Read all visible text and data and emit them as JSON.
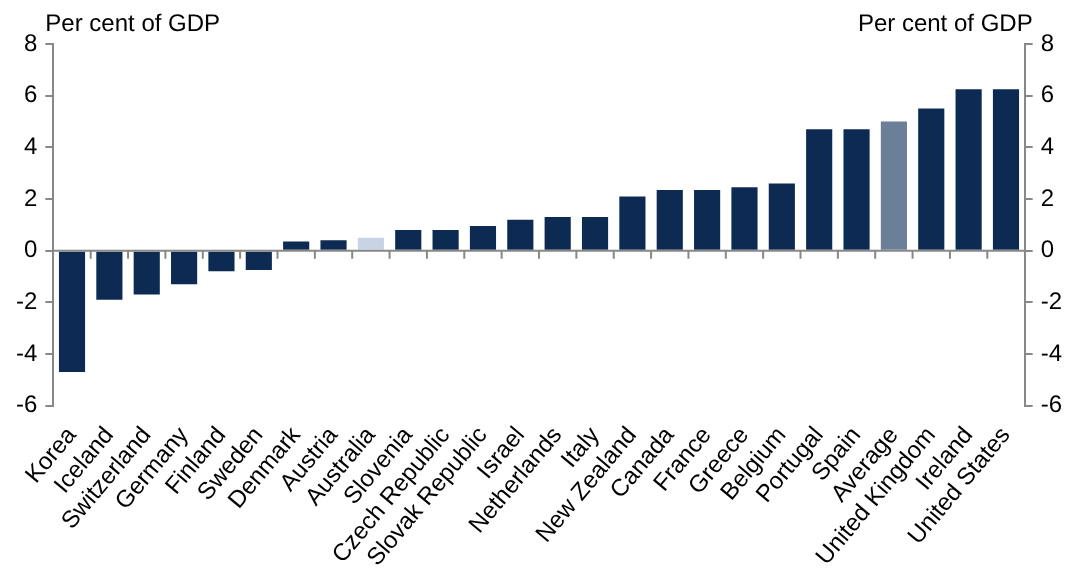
{
  "chart_data": {
    "type": "bar",
    "ylabel": "Per cent of GDP",
    "y2label": "Per cent of GDP",
    "categories": [
      "Korea",
      "Iceland",
      "Switzerland",
      "Germany",
      "Finland",
      "Sweden",
      "Denmark",
      "Austria",
      "Australia",
      "Slovenia",
      "Czech Republic",
      "Slovak Republic",
      "Israel",
      "Netherlands",
      "Italy",
      "New Zealand",
      "Canada",
      "France",
      "Greece",
      "Belgium",
      "Portugal",
      "Spain",
      "Average",
      "United Kingdom",
      "Ireland",
      "United States"
    ],
    "values": [
      -4.7,
      -1.9,
      -1.7,
      -1.3,
      -0.8,
      -0.75,
      0.35,
      0.4,
      0.5,
      0.8,
      0.8,
      0.95,
      1.2,
      1.3,
      1.3,
      2.1,
      2.35,
      2.35,
      2.45,
      2.6,
      4.7,
      4.7,
      5.0,
      5.5,
      6.25,
      6.25
    ],
    "colors": [
      "#0d2a52",
      "#0d2a52",
      "#0d2a52",
      "#0d2a52",
      "#0d2a52",
      "#0d2a52",
      "#0d2a52",
      "#0d2a52",
      "#c8d4e4",
      "#0d2a52",
      "#0d2a52",
      "#0d2a52",
      "#0d2a52",
      "#0d2a52",
      "#0d2a52",
      "#0d2a52",
      "#0d2a52",
      "#0d2a52",
      "#0d2a52",
      "#0d2a52",
      "#0d2a52",
      "#0d2a52",
      "#6b7f98",
      "#0d2a52",
      "#0d2a52",
      "#0d2a52"
    ],
    "ylim": [
      -6,
      8
    ],
    "yticks": [
      -6,
      -4,
      -2,
      0,
      2,
      4,
      6,
      8
    ],
    "y2lim": [
      -6,
      8
    ],
    "y2ticks": [
      -6,
      -4,
      -2,
      0,
      2,
      4,
      6,
      8
    ],
    "legend": false
  }
}
